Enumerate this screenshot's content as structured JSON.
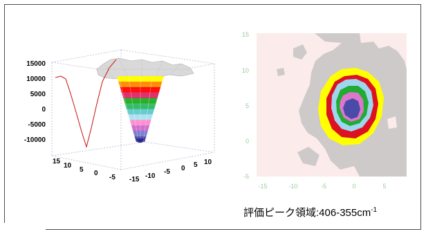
{
  "caption": {
    "text": "評価ピーク領域:406-355cm",
    "superscript": "-1"
  },
  "chart_data": [
    {
      "type": "surface3d",
      "z_ticks": [
        "15000",
        "10000",
        "5000",
        "0",
        "-5000",
        "-10000"
      ],
      "x_ticks": [
        "15",
        "10",
        "5",
        "0",
        "-5"
      ],
      "y_ticks": [
        "-15",
        "-10",
        "-5",
        "0",
        "5",
        "10"
      ],
      "profile_line_color": "#cc2222",
      "colors": [
        "#ffff00",
        "#ff0000",
        "#22aa22",
        "#66cccc",
        "#ff88cc",
        "#4444aa"
      ]
    },
    {
      "type": "contour",
      "x_ticks": [
        "-15",
        "-10",
        "-5",
        "0",
        "5"
      ],
      "y_ticks": [
        "15",
        "10",
        "5",
        "0",
        "-5"
      ],
      "xlim": [
        -17,
        8
      ],
      "ylim": [
        -5,
        15
      ],
      "tick_color": "#99cc99",
      "levels": [
        {
          "color": "#cfcaca"
        },
        {
          "color": "#ffff00"
        },
        {
          "color": "#dd1122"
        },
        {
          "color": "#9fd6ef"
        },
        {
          "color": "#22aa33"
        },
        {
          "color": "#dd77cc"
        },
        {
          "color": "#4a4aa8"
        }
      ]
    }
  ]
}
